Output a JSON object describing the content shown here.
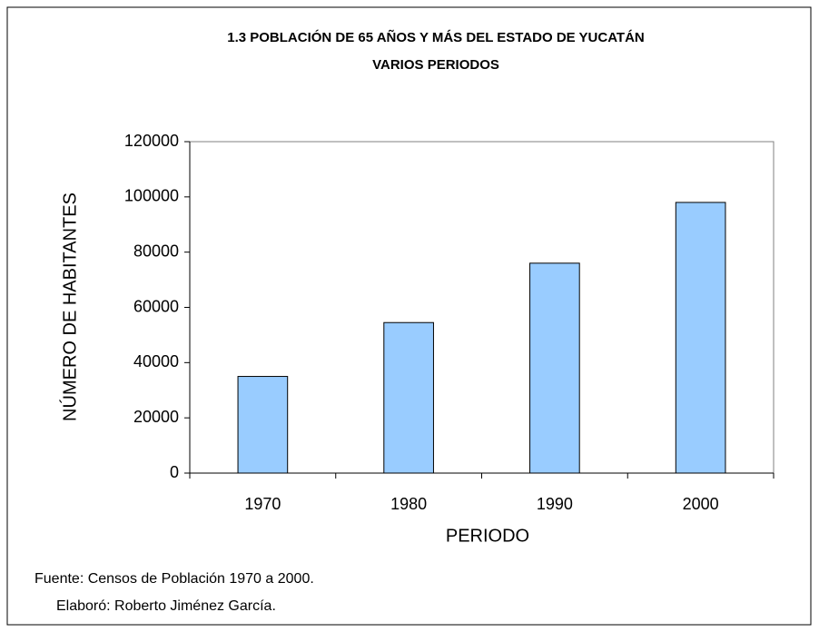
{
  "chart_data": {
    "type": "bar",
    "title": "1.3 POBLACIÓN DE 65 AÑOS Y MÁS DEL ESTADO DE YUCATÁN",
    "subtitle": "VARIOS PERIODOS",
    "x_label": "PERIODO",
    "y_label": "NÚMERO DE HABITANTES",
    "categories": [
      "1970",
      "1980",
      "1990",
      "2000"
    ],
    "values": [
      35000,
      54500,
      76000,
      98000
    ],
    "color": "#99ccff",
    "ylim": [
      0,
      120000
    ],
    "yticks": [
      0,
      20000,
      40000,
      60000,
      80000,
      100000,
      120000
    ],
    "grid": false,
    "notes": [
      "Fuente: Censos de Población 1970 a 2000.",
      "Elaboró: Roberto Jiménez García."
    ]
  }
}
